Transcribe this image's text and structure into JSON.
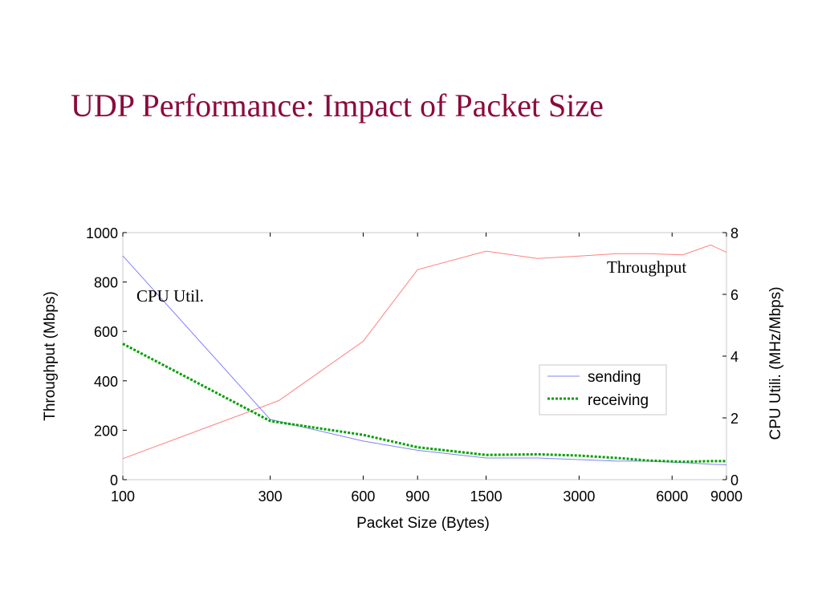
{
  "slide": {
    "title": "UDP Performance: Impact of Packet Size"
  },
  "chart_data": {
    "type": "line",
    "x_scale": "log",
    "xlabel": "Packet Size (Bytes)",
    "ylabel_left": "Throughput (Mbps)",
    "ylabel_right": "CPU Utili. (MHz/Mbps)",
    "xlim": [
      100,
      9000
    ],
    "ylim_left": [
      0,
      1000
    ],
    "ylim_right": [
      0,
      8
    ],
    "x_ticks": [
      100,
      300,
      600,
      900,
      1500,
      3000,
      6000,
      9000
    ],
    "y_ticks_left": [
      0,
      200,
      400,
      600,
      800,
      1000
    ],
    "y_ticks_right": [
      0,
      2,
      4,
      6,
      8
    ],
    "grid": false,
    "legend_position": "center-right",
    "colors": {
      "throughput": "#ff8080",
      "sending": "#8080ff",
      "receiving": "#00a000",
      "title": "#8b0a3c"
    },
    "annotations": [
      {
        "text": "Throughput",
        "near_series": "throughput"
      },
      {
        "text": "CPU Util.",
        "near_series": "sending"
      }
    ],
    "series": [
      {
        "key": "throughput",
        "axis": "left",
        "x": [
          100,
          320,
          600,
          900,
          1500,
          2200,
          3000,
          4000,
          5000,
          6500,
          8000,
          9000
        ],
        "y": [
          85,
          320,
          560,
          850,
          925,
          895,
          905,
          915,
          915,
          910,
          950,
          920
        ]
      },
      {
        "key": "sending",
        "name": "sending",
        "axis": "right",
        "x": [
          100,
          300,
          600,
          900,
          1500,
          2200,
          3000,
          4000,
          5000,
          6500,
          8000,
          9000
        ],
        "y": [
          7.25,
          1.95,
          1.25,
          0.95,
          0.7,
          0.7,
          0.65,
          0.6,
          0.6,
          0.55,
          0.5,
          0.48
        ]
      },
      {
        "key": "receiving",
        "name": "receiving",
        "axis": "right",
        "x": [
          100,
          300,
          600,
          900,
          1500,
          2200,
          3000,
          4000,
          5000,
          6500,
          8000,
          9000
        ],
        "y": [
          4.4,
          1.9,
          1.45,
          1.05,
          0.8,
          0.82,
          0.78,
          0.7,
          0.62,
          0.58,
          0.6,
          0.6
        ]
      }
    ]
  }
}
